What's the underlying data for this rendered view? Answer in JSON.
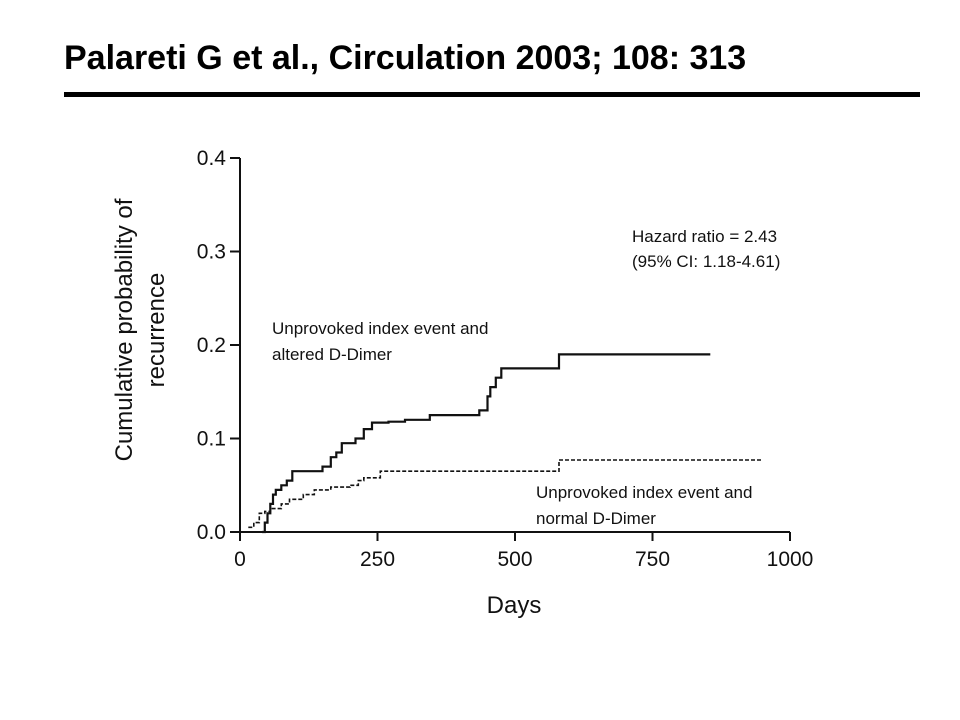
{
  "slide": {
    "title": "Palareti G et al., Circulation 2003; 108: 313"
  },
  "chart_data": {
    "type": "line",
    "step": true,
    "title": "",
    "xlabel": "Days",
    "ylabel_lines": [
      "Cumulative probability of",
      "recurrence"
    ],
    "xlim": [
      0,
      1000
    ],
    "ylim": [
      0,
      0.4
    ],
    "xticks": [
      0,
      250,
      500,
      750,
      1000
    ],
    "yticks": [
      0.0,
      0.1,
      0.2,
      0.3,
      0.4
    ],
    "xtick_labels": [
      "0",
      "250",
      "500",
      "750",
      "1000"
    ],
    "ytick_labels": [
      "0.0",
      "0.1",
      "0.2",
      "0.3",
      "0.4"
    ],
    "grid": false,
    "annotations": {
      "hazard": [
        "Hazard ratio = 2.43",
        "(95% CI: 1.18-4.61)"
      ]
    },
    "series": [
      {
        "label_lines": [
          "Unprovoked index event and",
          "altered D-Dimer"
        ],
        "line_style": "solid",
        "color": "#111111",
        "x": [
          40,
          45,
          50,
          55,
          60,
          65,
          75,
          85,
          95,
          110,
          150,
          165,
          175,
          185,
          210,
          225,
          240,
          270,
          300,
          345,
          400,
          425,
          435,
          450,
          455,
          465,
          475,
          490,
          520,
          545,
          560,
          580,
          855
        ],
        "y": [
          0.0,
          0.01,
          0.02,
          0.03,
          0.04,
          0.045,
          0.05,
          0.055,
          0.065,
          0.065,
          0.07,
          0.08,
          0.085,
          0.095,
          0.1,
          0.11,
          0.117,
          0.118,
          0.12,
          0.125,
          0.125,
          0.125,
          0.13,
          0.145,
          0.155,
          0.165,
          0.175,
          0.175,
          0.175,
          0.175,
          0.175,
          0.19,
          0.19
        ]
      },
      {
        "label_lines": [
          "Unprovoked index event and",
          "normal D-Dimer"
        ],
        "line_style": "dashed",
        "color": "#111111",
        "x": [
          15,
          25,
          35,
          45,
          55,
          75,
          90,
          115,
          135,
          165,
          200,
          215,
          225,
          255,
          285,
          320,
          580,
          950
        ],
        "y": [
          0.005,
          0.01,
          0.02,
          0.022,
          0.025,
          0.03,
          0.035,
          0.04,
          0.045,
          0.048,
          0.05,
          0.055,
          0.058,
          0.065,
          0.065,
          0.065,
          0.077,
          0.077
        ]
      }
    ]
  }
}
